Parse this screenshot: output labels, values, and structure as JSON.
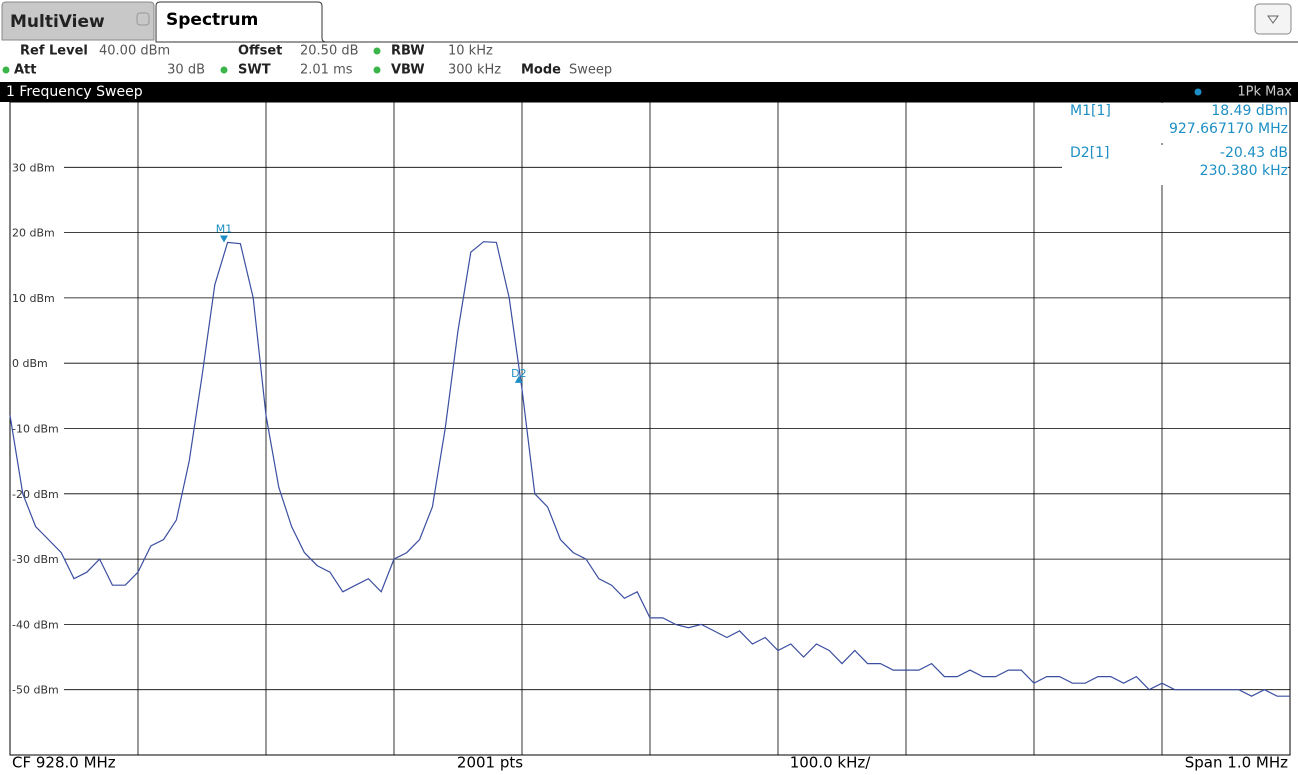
{
  "tabs": [
    "MultiView",
    "Spectrum"
  ],
  "settings": [
    {
      "label": "Ref Level",
      "value": "40.00 dBm"
    },
    {
      "label": "Offset",
      "value": "20.50 dB"
    },
    {
      "label": "RBW",
      "value": "10 kHz"
    },
    {
      "label": "Att",
      "value": "30 dB"
    },
    {
      "label": "SWT",
      "value": "2.01 ms"
    },
    {
      "label": "VBW",
      "value": "300 kHz"
    },
    {
      "label": "Mode",
      "value": "Sweep"
    }
  ],
  "marker_table": [
    {
      "name": "M1[1]",
      "level": "18.49 dBm",
      "position": "927.667170 MHz"
    },
    {
      "name": "D2[1]",
      "level": "-20.43 dB",
      "position": "230.380 kHz"
    }
  ],
  "footer": [
    "CF 928.0 MHz",
    "2001 pts",
    "100.0 kHz/",
    "Span 1.0 MHz"
  ],
  "chart_data": {
    "type": "line",
    "title": "1 Frequency Sweep",
    "xlim": [
      927.5,
      928.5
    ],
    "ylim": [
      -60,
      40
    ],
    "yticks": [
      {
        "value": 30,
        "label": "30 dBm"
      },
      {
        "value": 20,
        "label": "20 dBm"
      },
      {
        "value": 10,
        "label": "10 dBm"
      },
      {
        "value": 0,
        "label": "0 dBm"
      },
      {
        "value": -10,
        "label": "-10 dBm"
      },
      {
        "value": -20,
        "label": "-20 dBm"
      },
      {
        "value": -30,
        "label": "-30 dBm"
      },
      {
        "value": -40,
        "label": "-40 dBm"
      },
      {
        "value": -50,
        "label": "-50 dBm"
      }
    ],
    "grid": true,
    "series": [
      {
        "name": "1Pk Max",
        "color": "#3b4fa0",
        "x": [
          927.5,
          927.51,
          927.52,
          927.53,
          927.54,
          927.55,
          927.56,
          927.57,
          927.58,
          927.59,
          927.6,
          927.61,
          927.62,
          927.63,
          927.64,
          927.65,
          927.66,
          927.67,
          927.68,
          927.69,
          927.7,
          927.71,
          927.72,
          927.73,
          927.74,
          927.75,
          927.76,
          927.77,
          927.78,
          927.79,
          927.8,
          927.81,
          927.82,
          927.83,
          927.84,
          927.85,
          927.86,
          927.87,
          927.88,
          927.89,
          927.9,
          927.91,
          927.92,
          927.93,
          927.94,
          927.95,
          927.96,
          927.97,
          927.98,
          927.99,
          928.0,
          928.01,
          928.02,
          928.03,
          928.04,
          928.05,
          928.06,
          928.07,
          928.08,
          928.09,
          928.1,
          928.11,
          928.12,
          928.13,
          928.14,
          928.15,
          928.16,
          928.17,
          928.18,
          928.19,
          928.2,
          928.21,
          928.22,
          928.23,
          928.24,
          928.25,
          928.26,
          928.27,
          928.28,
          928.29,
          928.3,
          928.31,
          928.32,
          928.33,
          928.34,
          928.35,
          928.36,
          928.37,
          928.38,
          928.39,
          928.4,
          928.41,
          928.42,
          928.43,
          928.44,
          928.45,
          928.46,
          928.47,
          928.48,
          928.49,
          928.5
        ],
        "values": [
          -8,
          -20,
          -25,
          -27,
          -29,
          -33,
          -32,
          -30,
          -34,
          -34,
          -32,
          -28,
          -27,
          -24,
          -15,
          -2,
          12,
          18.5,
          18.3,
          10,
          -8,
          -19,
          -25,
          -29,
          -31,
          -32,
          -35,
          -34,
          -33,
          -35,
          -30,
          -29,
          -27,
          -22,
          -10,
          5,
          17,
          18.6,
          18.5,
          10,
          -4,
          -20,
          -22,
          -27,
          -29,
          -30,
          -33,
          -34,
          -36,
          -35,
          -39,
          -39,
          -40,
          -40.5,
          -40,
          -41,
          -42,
          -41,
          -43,
          -42,
          -44,
          -43,
          -45,
          -43,
          -44,
          -46,
          -44,
          -46,
          -46,
          -47,
          -47,
          -47,
          -46,
          -48,
          -48,
          -47,
          -48,
          -48,
          -47,
          -47,
          -49,
          -48,
          -48,
          -49,
          -49,
          -48,
          -48,
          -49,
          -48,
          -50,
          -49,
          -50,
          -50,
          -50,
          -50,
          -50,
          -50,
          -51,
          -50,
          -51,
          -51
        ]
      }
    ],
    "markers": [
      {
        "label": "M1",
        "x": 927.66717,
        "y": 18.49,
        "color": "#1e8fc4",
        "shape": "down"
      },
      {
        "label": "D2",
        "x": 927.89755,
        "y": -1.94,
        "color": "#1e8fc4",
        "shape": "up"
      }
    ]
  }
}
